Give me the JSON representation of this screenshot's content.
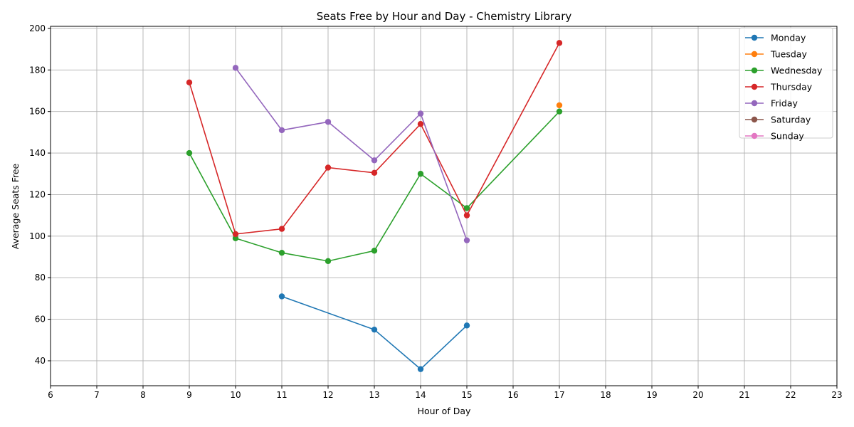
{
  "chart_data": {
    "type": "line",
    "title": "Seats Free by Hour and Day - Chemistry Library",
    "xlabel": "Hour of Day",
    "ylabel": "Average Seats Free",
    "xlim": [
      6,
      23
    ],
    "ylim": [
      28,
      201
    ],
    "x_ticks": [
      6,
      7,
      8,
      9,
      10,
      11,
      12,
      13,
      14,
      15,
      16,
      17,
      18,
      19,
      20,
      21,
      22,
      23
    ],
    "y_ticks": [
      40,
      60,
      80,
      100,
      120,
      140,
      160,
      180,
      200
    ],
    "grid": true,
    "legend_position": "top-right",
    "series": [
      {
        "name": "Monday",
        "color": "#1f77b4",
        "points": [
          [
            11,
            71
          ],
          [
            13,
            55
          ],
          [
            14,
            36
          ],
          [
            15,
            57
          ]
        ]
      },
      {
        "name": "Tuesday",
        "color": "#ff7f0e",
        "points": [
          [
            17,
            163
          ]
        ]
      },
      {
        "name": "Wednesday",
        "color": "#2ca02c",
        "points": [
          [
            9,
            140
          ],
          [
            10,
            99
          ],
          [
            11,
            92
          ],
          [
            12,
            88
          ],
          [
            13,
            93
          ],
          [
            14,
            130
          ],
          [
            15,
            113.5
          ],
          [
            17,
            160
          ]
        ]
      },
      {
        "name": "Thursday",
        "color": "#d62728",
        "points": [
          [
            9,
            174
          ],
          [
            10,
            101
          ],
          [
            11,
            103.5
          ],
          [
            12,
            133
          ],
          [
            13,
            130.5
          ],
          [
            14,
            154
          ],
          [
            15,
            110
          ],
          [
            17,
            193
          ]
        ]
      },
      {
        "name": "Friday",
        "color": "#9467bd",
        "points": [
          [
            10,
            181
          ],
          [
            11,
            151
          ],
          [
            12,
            155
          ],
          [
            13,
            136.5
          ],
          [
            14,
            159
          ],
          [
            15,
            98
          ]
        ]
      },
      {
        "name": "Saturday",
        "color": "#8c564b",
        "points": []
      },
      {
        "name": "Sunday",
        "color": "#e377c2",
        "points": []
      }
    ]
  }
}
